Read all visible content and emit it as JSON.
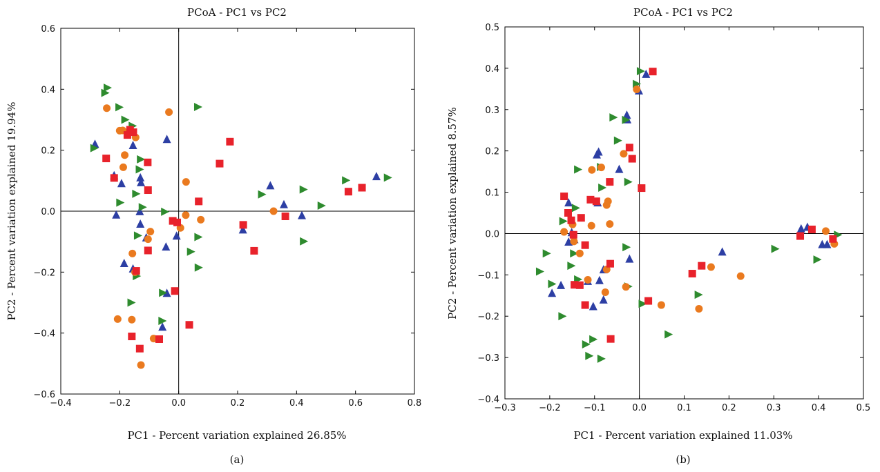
{
  "colors": {
    "triangle-up": "#2d3fa4",
    "triangle-right": "#2e8b2e",
    "circle": "#ea7a1f",
    "square": "#e8222b"
  },
  "chart_data": [
    {
      "type": "scatter",
      "title": "PCoA - PC1 vs PC2",
      "xlabel": "PC1 - Percent variation explained 26.85%",
      "ylabel": "PC2 - Percent variation explained 19.94%",
      "panel_label": "(a)",
      "xlim": [
        -0.4,
        0.8
      ],
      "ylim": [
        -0.6,
        0.6
      ],
      "xticks": [
        -0.4,
        -0.2,
        0.0,
        0.2,
        0.4,
        0.6,
        0.8
      ],
      "yticks": [
        -0.6,
        -0.4,
        -0.2,
        0.0,
        0.2,
        0.4,
        0.6
      ],
      "xtick_labels": [
        "−0.4",
        "−0.2",
        "0.0",
        "0.2",
        "0.4",
        "0.6",
        "0.8"
      ],
      "ytick_labels": [
        "−0.6",
        "−0.4",
        "−0.2",
        "0.0",
        "0.2",
        "0.4",
        "0.6"
      ],
      "grid": false,
      "series": [
        {
          "marker": "triangle-up",
          "color": "#2d3fa4",
          "points": [
            [
              -0.284,
              0.219
            ],
            [
              -0.219,
              0.116
            ],
            [
              -0.194,
              0.09
            ],
            [
              -0.155,
              0.215
            ],
            [
              -0.13,
              0.109
            ],
            [
              -0.128,
              0.093
            ],
            [
              -0.132,
              -0.002
            ],
            [
              -0.13,
              -0.043
            ],
            [
              -0.11,
              -0.088
            ],
            [
              -0.185,
              -0.172
            ],
            [
              -0.155,
              -0.19
            ],
            [
              -0.04,
              0.235
            ],
            [
              -0.043,
              -0.118
            ],
            [
              -0.007,
              -0.082
            ],
            [
              -0.04,
              -0.27
            ],
            [
              -0.055,
              -0.381
            ],
            [
              0.218,
              -0.062
            ],
            [
              0.311,
              0.083
            ],
            [
              0.357,
              0.021
            ],
            [
              0.418,
              -0.015
            ],
            [
              0.671,
              0.113
            ],
            [
              -0.212,
              -0.013
            ]
          ]
        },
        {
          "marker": "triangle-right",
          "color": "#2e8b2e",
          "points": [
            [
              -0.243,
              0.405
            ],
            [
              -0.251,
              0.388
            ],
            [
              -0.203,
              0.341
            ],
            [
              -0.183,
              0.3
            ],
            [
              -0.158,
              0.28
            ],
            [
              -0.288,
              0.207
            ],
            [
              -0.13,
              0.17
            ],
            [
              -0.134,
              0.137
            ],
            [
              -0.2,
              0.028
            ],
            [
              -0.146,
              0.057
            ],
            [
              -0.048,
              -0.002
            ],
            [
              -0.124,
              0.013
            ],
            [
              -0.14,
              -0.08
            ],
            [
              -0.144,
              -0.213
            ],
            [
              -0.162,
              -0.3
            ],
            [
              -0.055,
              -0.268
            ],
            [
              -0.057,
              -0.36
            ],
            [
              0.064,
              0.342
            ],
            [
              0.065,
              -0.085
            ],
            [
              0.04,
              -0.133
            ],
            [
              0.066,
              -0.185
            ],
            [
              0.281,
              0.055
            ],
            [
              0.422,
              0.071
            ],
            [
              0.483,
              0.018
            ],
            [
              0.423,
              -0.099
            ],
            [
              0.566,
              0.101
            ],
            [
              0.708,
              0.11
            ]
          ]
        },
        {
          "marker": "circle",
          "color": "#ea7a1f",
          "points": [
            [
              -0.244,
              0.338
            ],
            [
              -0.2,
              0.264
            ],
            [
              -0.19,
              0.265
            ],
            [
              -0.183,
              0.184
            ],
            [
              -0.188,
              0.144
            ],
            [
              -0.146,
              0.242
            ],
            [
              -0.033,
              0.325
            ],
            [
              -0.096,
              -0.067
            ],
            [
              -0.104,
              -0.092
            ],
            [
              -0.157,
              -0.139
            ],
            [
              -0.148,
              -0.2
            ],
            [
              -0.207,
              -0.354
            ],
            [
              -0.159,
              -0.356
            ],
            [
              -0.085,
              -0.418
            ],
            [
              -0.128,
              -0.505
            ],
            [
              0.025,
              0.096
            ],
            [
              0.006,
              -0.055
            ],
            [
              0.024,
              -0.013
            ],
            [
              0.075,
              -0.028
            ],
            [
              0.322,
              0.0
            ]
          ]
        },
        {
          "marker": "square",
          "color": "#e8222b",
          "points": [
            [
              -0.246,
              0.173
            ],
            [
              -0.219,
              0.109
            ],
            [
              -0.174,
              0.25
            ],
            [
              -0.165,
              0.267
            ],
            [
              -0.154,
              0.259
            ],
            [
              -0.105,
              0.16
            ],
            [
              -0.104,
              0.069
            ],
            [
              -0.104,
              -0.129
            ],
            [
              -0.144,
              -0.196
            ],
            [
              -0.159,
              -0.411
            ],
            [
              -0.132,
              -0.451
            ],
            [
              -0.066,
              -0.42
            ],
            [
              -0.02,
              -0.032
            ],
            [
              -0.005,
              -0.037
            ],
            [
              -0.013,
              -0.262
            ],
            [
              0.036,
              -0.373
            ],
            [
              0.068,
              0.032
            ],
            [
              0.139,
              0.156
            ],
            [
              0.174,
              0.228
            ],
            [
              0.219,
              -0.045
            ],
            [
              0.256,
              -0.13
            ],
            [
              0.362,
              -0.017
            ],
            [
              0.576,
              0.064
            ],
            [
              0.622,
              0.077
            ]
          ]
        }
      ]
    },
    {
      "type": "scatter",
      "title": "PCoA - PC1 vs PC2",
      "xlabel": "PC1 - Percent variation explained 11.03%",
      "ylabel": "PC2 - Percent variation explained 8.57%",
      "panel_label": "(b)",
      "xlim": [
        -0.3,
        0.5
      ],
      "ylim": [
        -0.4,
        0.5
      ],
      "xticks": [
        -0.3,
        -0.2,
        -0.1,
        0.0,
        0.1,
        0.2,
        0.3,
        0.4,
        0.5
      ],
      "yticks": [
        -0.4,
        -0.3,
        -0.2,
        -0.1,
        0.0,
        0.1,
        0.2,
        0.3,
        0.4,
        0.5
      ],
      "xtick_labels": [
        "−0.3",
        "−0.2",
        "−0.1",
        "0.0",
        "0.1",
        "0.2",
        "0.3",
        "0.4",
        "0.5"
      ],
      "ytick_labels": [
        "−0.4",
        "−0.3",
        "−0.2",
        "−0.1",
        "0.0",
        "0.1",
        "0.2",
        "0.3",
        "0.4",
        "0.5"
      ],
      "grid": false,
      "series": [
        {
          "marker": "triangle-up",
          "color": "#2d3fa4",
          "points": [
            [
              0.015,
              0.385
            ],
            [
              -0.001,
              0.345
            ],
            [
              -0.028,
              0.286
            ],
            [
              -0.027,
              0.275
            ],
            [
              -0.091,
              0.197
            ],
            [
              -0.095,
              0.19
            ],
            [
              -0.045,
              0.155
            ],
            [
              -0.093,
              0.074
            ],
            [
              -0.158,
              0.074
            ],
            [
              -0.151,
              0.002
            ],
            [
              -0.145,
              -0.015
            ],
            [
              -0.158,
              -0.021
            ],
            [
              -0.022,
              -0.062
            ],
            [
              -0.08,
              -0.088
            ],
            [
              -0.089,
              -0.114
            ],
            [
              -0.115,
              -0.116
            ],
            [
              -0.175,
              -0.126
            ],
            [
              -0.195,
              -0.145
            ],
            [
              -0.103,
              -0.177
            ],
            [
              -0.08,
              -0.161
            ],
            [
              0.185,
              -0.045
            ],
            [
              0.361,
              0.011
            ],
            [
              0.375,
              0.015
            ],
            [
              0.408,
              -0.027
            ],
            [
              0.419,
              -0.027
            ]
          ]
        },
        {
          "marker": "triangle-right",
          "color": "#2e8b2e",
          "points": [
            [
              0.002,
              0.393
            ],
            [
              -0.007,
              0.362
            ],
            [
              -0.059,
              0.281
            ],
            [
              -0.031,
              0.275
            ],
            [
              -0.049,
              0.225
            ],
            [
              -0.138,
              0.155
            ],
            [
              -0.087,
              0.161
            ],
            [
              -0.026,
              0.125
            ],
            [
              -0.084,
              0.111
            ],
            [
              -0.143,
              0.062
            ],
            [
              -0.171,
              0.03
            ],
            [
              -0.147,
              -0.048
            ],
            [
              -0.208,
              -0.048
            ],
            [
              -0.153,
              -0.078
            ],
            [
              -0.03,
              -0.033
            ],
            [
              -0.138,
              -0.111
            ],
            [
              -0.223,
              -0.092
            ],
            [
              -0.196,
              -0.122
            ],
            [
              -0.026,
              -0.128
            ],
            [
              -0.173,
              -0.2
            ],
            [
              -0.12,
              -0.268
            ],
            [
              -0.113,
              -0.296
            ],
            [
              -0.086,
              -0.303
            ],
            [
              -0.104,
              -0.256
            ],
            [
              0.006,
              -0.17
            ],
            [
              0.064,
              -0.244
            ],
            [
              0.131,
              -0.148
            ],
            [
              0.302,
              -0.037
            ],
            [
              0.396,
              -0.063
            ],
            [
              0.442,
              -0.003
            ]
          ]
        },
        {
          "marker": "circle",
          "color": "#ea7a1f",
          "points": [
            [
              -0.006,
              0.349
            ],
            [
              -0.035,
              0.193
            ],
            [
              -0.106,
              0.154
            ],
            [
              -0.085,
              0.16
            ],
            [
              -0.07,
              0.078
            ],
            [
              -0.073,
              0.069
            ],
            [
              -0.168,
              0.004
            ],
            [
              -0.149,
              0.022
            ],
            [
              -0.107,
              0.019
            ],
            [
              -0.066,
              0.023
            ],
            [
              -0.146,
              -0.019
            ],
            [
              -0.133,
              -0.048
            ],
            [
              -0.073,
              -0.087
            ],
            [
              -0.115,
              -0.112
            ],
            [
              -0.076,
              -0.142
            ],
            [
              -0.03,
              -0.129
            ],
            [
              0.049,
              -0.173
            ],
            [
              0.133,
              -0.182
            ],
            [
              0.16,
              -0.081
            ],
            [
              0.226,
              -0.103
            ],
            [
              0.416,
              0.006
            ],
            [
              0.435,
              -0.025
            ]
          ]
        },
        {
          "marker": "square",
          "color": "#e8222b",
          "points": [
            [
              0.03,
              0.392
            ],
            [
              -0.022,
              0.208
            ],
            [
              -0.016,
              0.181
            ],
            [
              0.005,
              0.11
            ],
            [
              -0.066,
              0.125
            ],
            [
              -0.109,
              0.082
            ],
            [
              -0.096,
              0.078
            ],
            [
              -0.168,
              0.09
            ],
            [
              -0.159,
              0.05
            ],
            [
              -0.152,
              0.032
            ],
            [
              -0.13,
              0.038
            ],
            [
              -0.147,
              -0.003
            ],
            [
              -0.121,
              -0.028
            ],
            [
              -0.145,
              -0.124
            ],
            [
              -0.133,
              -0.125
            ],
            [
              -0.121,
              -0.173
            ],
            [
              -0.065,
              -0.073
            ],
            [
              -0.064,
              -0.255
            ],
            [
              0.02,
              -0.163
            ],
            [
              0.118,
              -0.097
            ],
            [
              0.139,
              -0.078
            ],
            [
              0.359,
              -0.006
            ],
            [
              0.385,
              0.01
            ],
            [
              0.432,
              -0.013
            ]
          ]
        }
      ]
    }
  ]
}
